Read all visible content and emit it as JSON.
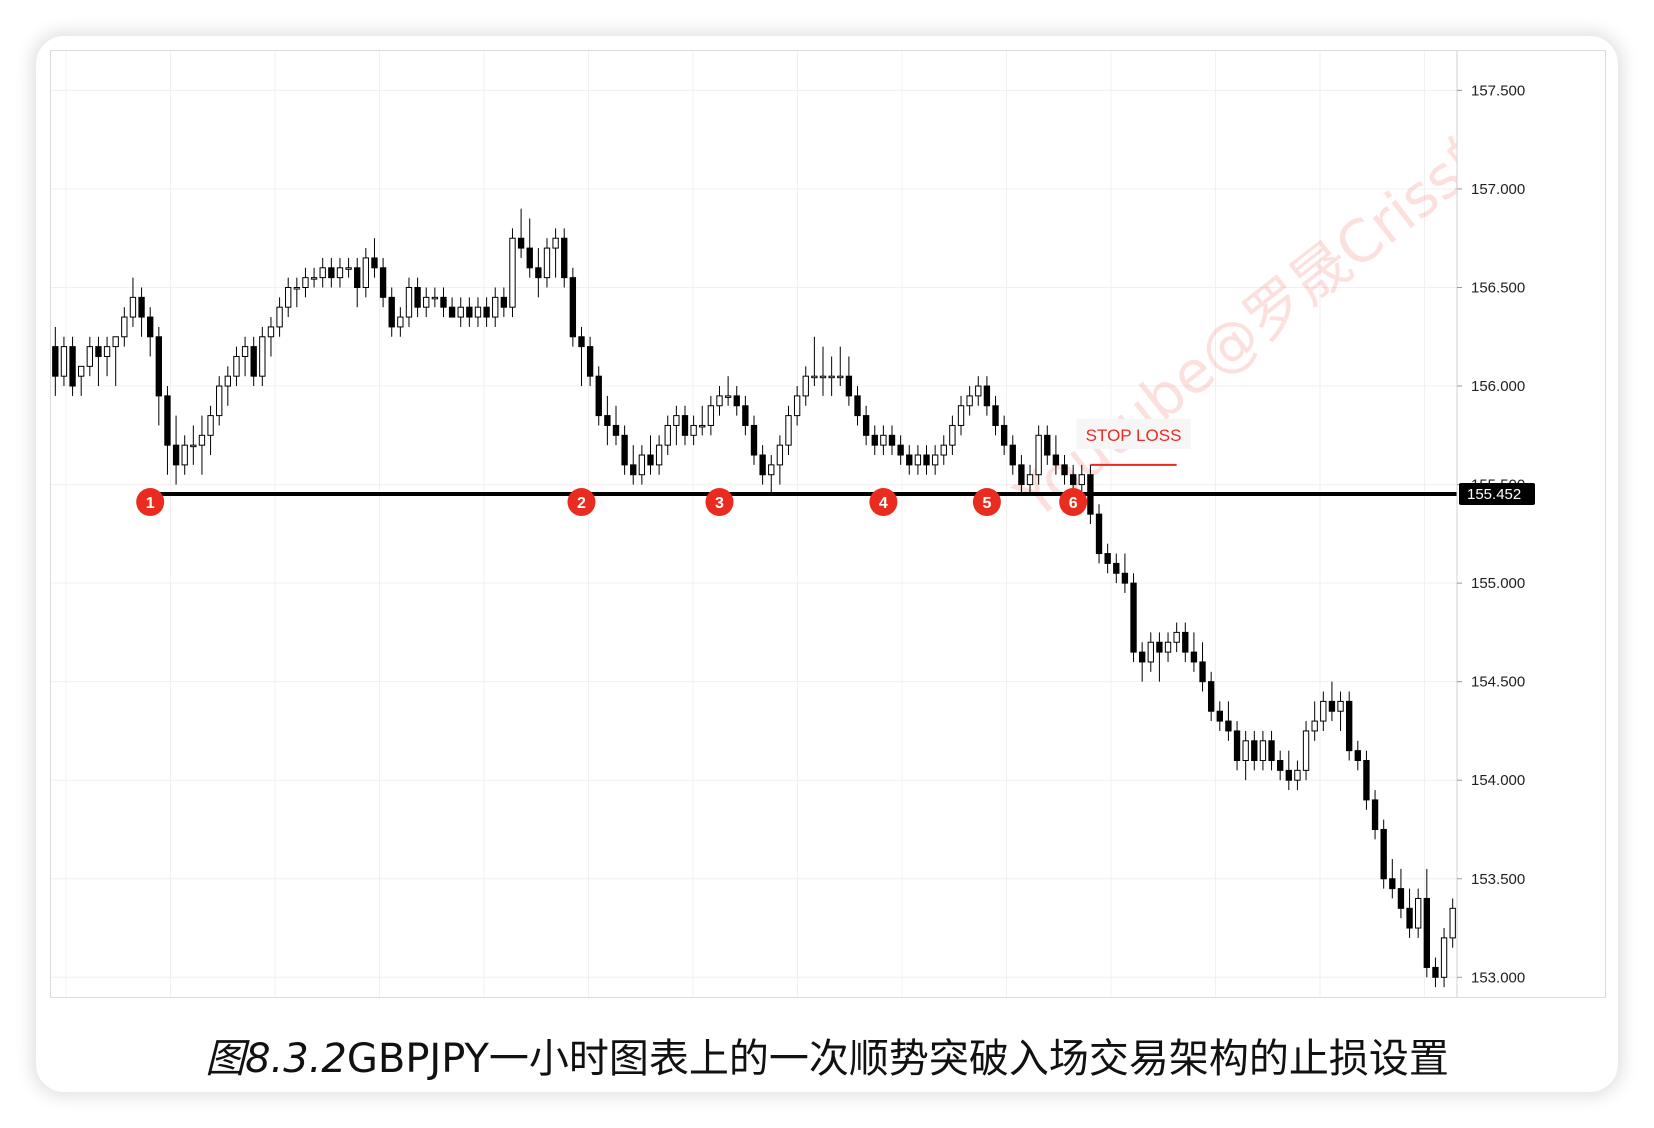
{
  "caption": {
    "fig_number": "图8.3.2",
    "text": "GBPJPY一小时图表上的一次顺势突破入场交易架构的止损设置"
  },
  "watermark": "Youtube@罗晟Criss的",
  "colors": {
    "bull_body": "#ffffff",
    "bear_body": "#000000",
    "candle_outline": "#000000",
    "marker": "#ea2b1f",
    "stop_loss": "#ea2b1f",
    "level_line": "#000000",
    "grid": "#f0f0f0"
  },
  "chart_data": {
    "type": "candlestick",
    "instrument": "GBPJPY",
    "timeframe": "1H",
    "title": "",
    "xlabel": "",
    "ylabel": "",
    "ylim": [
      152.9,
      157.7
    ],
    "y_ticks": [
      "157.500",
      "157.000",
      "156.500",
      "156.000",
      "155.500",
      "155.000",
      "154.500",
      "154.000",
      "153.500",
      "153.000"
    ],
    "grid": true,
    "price_scale": "right",
    "horizontal_level": {
      "value": 155.452,
      "label": "155.452"
    },
    "stop_loss": {
      "label": "STOP LOSS",
      "value": 155.6,
      "from_index": 120,
      "to_index": 130
    },
    "markers": [
      {
        "label": "1",
        "index": 11
      },
      {
        "label": "2",
        "index": 61
      },
      {
        "label": "3",
        "index": 77
      },
      {
        "label": "4",
        "index": 96
      },
      {
        "label": "5",
        "index": 108
      },
      {
        "label": "6",
        "index": 118
      }
    ],
    "candles": [
      [
        156.2,
        156.3,
        155.95,
        156.05
      ],
      [
        156.05,
        156.25,
        156.0,
        156.2
      ],
      [
        156.2,
        156.25,
        155.95,
        156.0
      ],
      [
        156.05,
        156.1,
        155.95,
        156.1
      ],
      [
        156.1,
        156.25,
        156.05,
        156.2
      ],
      [
        156.2,
        156.25,
        156.0,
        156.15
      ],
      [
        156.15,
        156.25,
        156.05,
        156.2
      ],
      [
        156.2,
        156.25,
        156.0,
        156.25
      ],
      [
        156.25,
        156.4,
        156.2,
        156.35
      ],
      [
        156.35,
        156.55,
        156.3,
        156.45
      ],
      [
        156.45,
        156.5,
        156.25,
        156.35
      ],
      [
        156.35,
        156.4,
        156.15,
        156.25
      ],
      [
        156.25,
        156.3,
        155.8,
        155.95
      ],
      [
        155.95,
        156.0,
        155.55,
        155.7
      ],
      [
        155.7,
        155.85,
        155.5,
        155.6
      ],
      [
        155.6,
        155.75,
        155.55,
        155.7
      ],
      [
        155.7,
        155.8,
        155.6,
        155.7
      ],
      [
        155.7,
        155.85,
        155.55,
        155.75
      ],
      [
        155.75,
        155.9,
        155.65,
        155.85
      ],
      [
        155.85,
        156.05,
        155.8,
        156.0
      ],
      [
        156.0,
        156.1,
        155.9,
        156.05
      ],
      [
        156.05,
        156.2,
        156.0,
        156.15
      ],
      [
        156.15,
        156.25,
        156.05,
        156.2
      ],
      [
        156.2,
        156.25,
        156.0,
        156.05
      ],
      [
        156.05,
        156.3,
        156.0,
        156.25
      ],
      [
        156.25,
        156.35,
        156.15,
        156.3
      ],
      [
        156.3,
        156.45,
        156.25,
        156.4
      ],
      [
        156.4,
        156.55,
        156.35,
        156.5
      ],
      [
        156.5,
        156.55,
        156.4,
        156.5
      ],
      [
        156.5,
        156.6,
        156.45,
        156.55
      ],
      [
        156.55,
        156.6,
        156.5,
        156.55
      ],
      [
        156.55,
        156.65,
        156.5,
        156.6
      ],
      [
        156.6,
        156.65,
        156.5,
        156.55
      ],
      [
        156.55,
        156.65,
        156.5,
        156.6
      ],
      [
        156.6,
        156.65,
        156.55,
        156.6
      ],
      [
        156.6,
        156.65,
        156.4,
        156.5
      ],
      [
        156.5,
        156.7,
        156.45,
        156.65
      ],
      [
        156.65,
        156.75,
        156.55,
        156.6
      ],
      [
        156.6,
        156.65,
        156.4,
        156.45
      ],
      [
        156.45,
        156.5,
        156.25,
        156.3
      ],
      [
        156.3,
        156.4,
        156.25,
        156.35
      ],
      [
        156.35,
        156.55,
        156.3,
        156.5
      ],
      [
        156.5,
        156.55,
        156.35,
        156.4
      ],
      [
        156.4,
        156.5,
        156.35,
        156.45
      ],
      [
        156.45,
        156.5,
        156.4,
        156.45
      ],
      [
        156.45,
        156.5,
        156.35,
        156.4
      ],
      [
        156.4,
        156.45,
        156.35,
        156.35
      ],
      [
        156.35,
        156.45,
        156.3,
        156.4
      ],
      [
        156.4,
        156.45,
        156.3,
        156.35
      ],
      [
        156.35,
        156.45,
        156.3,
        156.4
      ],
      [
        156.4,
        156.45,
        156.3,
        156.35
      ],
      [
        156.35,
        156.5,
        156.3,
        156.45
      ],
      [
        156.45,
        156.5,
        156.35,
        156.4
      ],
      [
        156.4,
        156.8,
        156.35,
        156.75
      ],
      [
        156.75,
        156.9,
        156.65,
        156.7
      ],
      [
        156.7,
        156.85,
        156.55,
        156.6
      ],
      [
        156.6,
        156.7,
        156.45,
        156.55
      ],
      [
        156.55,
        156.75,
        156.5,
        156.7
      ],
      [
        156.7,
        156.8,
        156.55,
        156.75
      ],
      [
        156.75,
        156.8,
        156.5,
        156.55
      ],
      [
        156.55,
        156.6,
        156.2,
        156.25
      ],
      [
        156.25,
        156.3,
        156.0,
        156.2
      ],
      [
        156.2,
        156.25,
        156.0,
        156.05
      ],
      [
        156.05,
        156.1,
        155.8,
        155.85
      ],
      [
        155.85,
        155.95,
        155.7,
        155.8
      ],
      [
        155.8,
        155.9,
        155.7,
        155.75
      ],
      [
        155.75,
        155.8,
        155.55,
        155.6
      ],
      [
        155.6,
        155.7,
        155.5,
        155.55
      ],
      [
        155.55,
        155.7,
        155.5,
        155.65
      ],
      [
        155.65,
        155.75,
        155.55,
        155.6
      ],
      [
        155.6,
        155.75,
        155.55,
        155.7
      ],
      [
        155.7,
        155.85,
        155.65,
        155.8
      ],
      [
        155.8,
        155.9,
        155.7,
        155.85
      ],
      [
        155.85,
        155.9,
        155.7,
        155.75
      ],
      [
        155.75,
        155.85,
        155.7,
        155.8
      ],
      [
        155.8,
        155.9,
        155.75,
        155.8
      ],
      [
        155.8,
        155.95,
        155.75,
        155.9
      ],
      [
        155.9,
        156.0,
        155.85,
        155.95
      ],
      [
        155.95,
        156.05,
        155.9,
        155.95
      ],
      [
        155.95,
        156.0,
        155.85,
        155.9
      ],
      [
        155.9,
        155.95,
        155.75,
        155.8
      ],
      [
        155.8,
        155.85,
        155.6,
        155.65
      ],
      [
        155.65,
        155.7,
        155.5,
        155.55
      ],
      [
        155.55,
        155.65,
        155.45,
        155.6
      ],
      [
        155.6,
        155.75,
        155.5,
        155.7
      ],
      [
        155.7,
        155.9,
        155.65,
        155.85
      ],
      [
        155.85,
        156.0,
        155.8,
        155.95
      ],
      [
        155.95,
        156.1,
        155.9,
        156.05
      ],
      [
        156.05,
        156.25,
        156.0,
        156.05
      ],
      [
        156.05,
        156.2,
        155.95,
        156.05
      ],
      [
        156.05,
        156.15,
        155.95,
        156.05
      ],
      [
        156.05,
        156.2,
        156.0,
        156.05
      ],
      [
        156.05,
        156.15,
        155.9,
        155.95
      ],
      [
        155.95,
        156.0,
        155.8,
        155.85
      ],
      [
        155.85,
        155.9,
        155.7,
        155.75
      ],
      [
        155.75,
        155.8,
        155.65,
        155.7
      ],
      [
        155.7,
        155.8,
        155.65,
        155.75
      ],
      [
        155.75,
        155.8,
        155.65,
        155.7
      ],
      [
        155.7,
        155.75,
        155.6,
        155.65
      ],
      [
        155.65,
        155.7,
        155.55,
        155.6
      ],
      [
        155.6,
        155.7,
        155.55,
        155.65
      ],
      [
        155.65,
        155.7,
        155.55,
        155.6
      ],
      [
        155.6,
        155.7,
        155.55,
        155.65
      ],
      [
        155.65,
        155.75,
        155.6,
        155.7
      ],
      [
        155.7,
        155.85,
        155.65,
        155.8
      ],
      [
        155.8,
        155.95,
        155.75,
        155.9
      ],
      [
        155.9,
        156.0,
        155.85,
        155.95
      ],
      [
        155.95,
        156.05,
        155.9,
        156.0
      ],
      [
        156.0,
        156.05,
        155.85,
        155.9
      ],
      [
        155.9,
        155.95,
        155.75,
        155.8
      ],
      [
        155.8,
        155.85,
        155.65,
        155.7
      ],
      [
        155.7,
        155.75,
        155.55,
        155.6
      ],
      [
        155.6,
        155.65,
        155.45,
        155.5
      ],
      [
        155.5,
        155.6,
        155.45,
        155.55
      ],
      [
        155.55,
        155.8,
        155.5,
        155.75
      ],
      [
        155.75,
        155.8,
        155.6,
        155.65
      ],
      [
        155.65,
        155.75,
        155.55,
        155.6
      ],
      [
        155.6,
        155.65,
        155.5,
        155.55
      ],
      [
        155.55,
        155.6,
        155.45,
        155.5
      ],
      [
        155.5,
        155.6,
        155.45,
        155.55
      ],
      [
        155.55,
        155.6,
        155.3,
        155.35
      ],
      [
        155.35,
        155.4,
        155.1,
        155.15
      ],
      [
        155.15,
        155.2,
        155.05,
        155.1
      ],
      [
        155.1,
        155.15,
        155.0,
        155.05
      ],
      [
        155.05,
        155.15,
        154.95,
        155.0
      ],
      [
        155.0,
        155.05,
        154.6,
        154.65
      ],
      [
        154.65,
        154.7,
        154.5,
        154.6
      ],
      [
        154.6,
        154.75,
        154.55,
        154.7
      ],
      [
        154.7,
        154.75,
        154.5,
        154.65
      ],
      [
        154.65,
        154.75,
        154.6,
        154.7
      ],
      [
        154.7,
        154.8,
        154.65,
        154.75
      ],
      [
        154.75,
        154.8,
        154.6,
        154.65
      ],
      [
        154.65,
        154.75,
        154.55,
        154.6
      ],
      [
        154.6,
        154.7,
        154.45,
        154.5
      ],
      [
        154.5,
        154.55,
        154.3,
        154.35
      ],
      [
        154.35,
        154.4,
        154.25,
        154.3
      ],
      [
        154.3,
        154.4,
        154.2,
        154.25
      ],
      [
        154.25,
        154.3,
        154.05,
        154.1
      ],
      [
        154.1,
        154.25,
        154.0,
        154.2
      ],
      [
        154.2,
        154.25,
        154.05,
        154.1
      ],
      [
        154.1,
        154.25,
        154.05,
        154.2
      ],
      [
        154.2,
        154.25,
        154.05,
        154.1
      ],
      [
        154.1,
        154.15,
        154.0,
        154.05
      ],
      [
        154.05,
        154.15,
        153.95,
        154.0
      ],
      [
        154.0,
        154.1,
        153.95,
        154.05
      ],
      [
        154.05,
        154.3,
        154.0,
        154.25
      ],
      [
        154.25,
        154.4,
        154.2,
        154.3
      ],
      [
        154.3,
        154.45,
        154.25,
        154.4
      ],
      [
        154.4,
        154.5,
        154.3,
        154.35
      ],
      [
        154.35,
        154.45,
        154.25,
        154.4
      ],
      [
        154.4,
        154.45,
        154.1,
        154.15
      ],
      [
        154.15,
        154.2,
        154.05,
        154.1
      ],
      [
        154.1,
        154.15,
        153.85,
        153.9
      ],
      [
        153.9,
        153.95,
        153.7,
        153.75
      ],
      [
        153.75,
        153.8,
        153.45,
        153.5
      ],
      [
        153.5,
        153.6,
        153.4,
        153.45
      ],
      [
        153.45,
        153.55,
        153.3,
        153.35
      ],
      [
        153.35,
        153.45,
        153.2,
        153.25
      ],
      [
        153.25,
        153.45,
        153.2,
        153.4
      ],
      [
        153.4,
        153.55,
        153.0,
        153.05
      ],
      [
        153.05,
        153.1,
        152.95,
        153.0
      ],
      [
        153.0,
        153.25,
        152.95,
        153.2
      ],
      [
        153.2,
        153.4,
        153.15,
        153.35
      ]
    ]
  }
}
